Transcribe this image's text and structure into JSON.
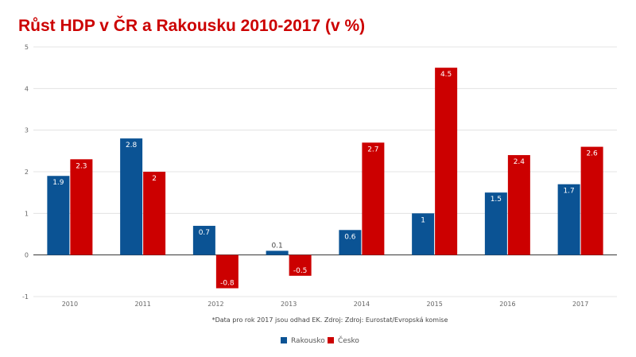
{
  "chart_data": {
    "type": "bar",
    "title": "Růst HDP v ČR a Rakousku 2010-2017 (v %)",
    "categories": [
      "2010",
      "2011",
      "2012",
      "2013",
      "2014",
      "2015",
      "2016",
      "2017"
    ],
    "series": [
      {
        "name": "Rakousko",
        "color": "#0b5394",
        "values": [
          1.9,
          2.8,
          0.7,
          0.1,
          0.6,
          1,
          1.5,
          1.7
        ]
      },
      {
        "name": "Česko",
        "color": "#cc0000",
        "values": [
          2.3,
          2,
          -0.8,
          -0.5,
          2.7,
          4.5,
          2.4,
          2.6
        ]
      }
    ],
    "ylim": [
      -1,
      5
    ],
    "yticks": [
      -1,
      0,
      1,
      2,
      3,
      4,
      5
    ],
    "grid": true,
    "legend": "bottom",
    "footnote": "*Data pro rok 2017 jsou odhad EK. Zdroj: Zdroj: Eurostat/Evropská komise",
    "title_color": "#cc0000"
  }
}
